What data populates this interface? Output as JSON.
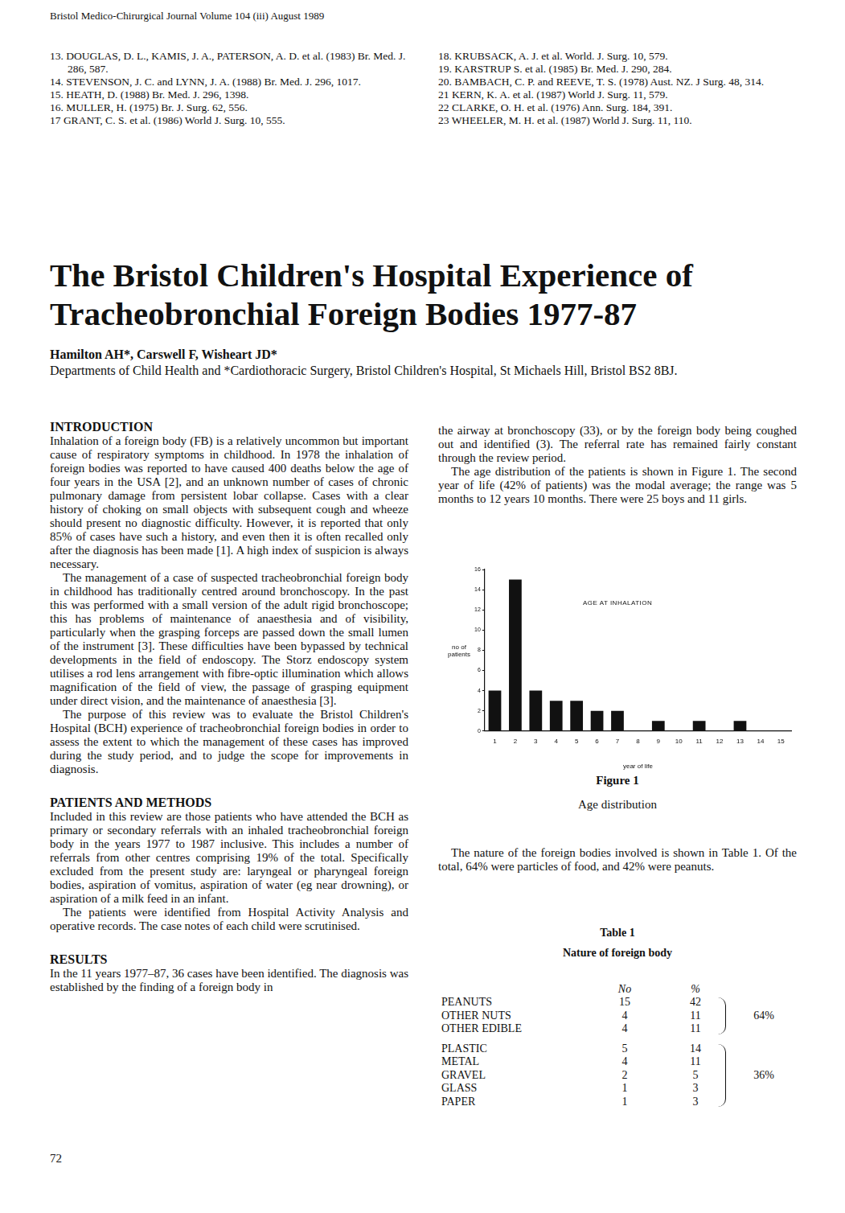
{
  "header": "Bristol Medico-Chirurgical Journal Volume 104 (iii) August 1989",
  "references": {
    "left": [
      "13. DOUGLAS, D. L., KAMIS, J. A., PATERSON, A. D. et al. (1983) Br. Med. J. 286, 587.",
      "14. STEVENSON, J. C. and LYNN, J. A. (1988) Br. Med. J. 296, 1017.",
      "15. HEATH, D. (1988) Br. Med. J. 296, 1398.",
      "16. MULLER, H. (1975) Br. J. Surg. 62, 556.",
      "17 GRANT, C. S. et al. (1986) World J. Surg. 10, 555."
    ],
    "right": [
      "18. KRUBSACK, A. J. et al. World. J. Surg. 10, 579.",
      "19. KARSTRUP S. et al. (1985) Br. Med. J. 290, 284.",
      "20. BAMBACH, C. P. and REEVE, T. S. (1978) Aust. NZ. J Surg. 48, 314.",
      "21 KERN, K. A. et al. (1987) World J. Surg. 11, 579.",
      "22 CLARKE, O. H. et al. (1976) Ann. Surg. 184, 391.",
      "23 WHEELER, M. H. et al. (1987) World J. Surg. 11, 110."
    ]
  },
  "title": "The Bristol Children's Hospital Experience of Tracheobronchial Foreign Bodies 1977-87",
  "authors": "Hamilton AH*, Carswell F, Wisheart JD*",
  "affiliation": "Departments of Child Health and *Cardiothoracic Surgery, Bristol Children's Hospital, St Michaels Hill, Bristol BS2 8BJ.",
  "left_column": [
    {
      "heading": "INTRODUCTION",
      "paragraphs": [
        "Inhalation of a foreign body (FB) is a relatively uncommon but important cause of respiratory symptoms in childhood. In 1978 the inhalation of foreign bodies was reported to have caused 400 deaths below the age of four years in the USA [2], and an unknown number of cases of chronic pulmonary damage from persistent lobar collapse. Cases with a clear history of choking on small objects with subsequent cough and wheeze should present no diagnostic difficulty. However, it is reported that only 85% of cases have such a history, and even then it is often recalled only after the diagnosis has been made [1]. A high index of suspicion is always necessary.",
        "The management of a case of suspected tracheobronchial foreign body in childhood has traditionally centred around bronchoscopy. In the past this was performed with a small version of the adult rigid bronchoscope; this has problems of maintenance of anaesthesia and of visibility, particularly when the grasping forceps are passed down the small lumen of the instrument [3]. These difficulties have been bypassed by technical developments in the field of endoscopy. The Storz endoscopy system utilises a rod lens arrangement with fibre-optic illumination which allows magnification of the field of view, the passage of grasping equipment under direct vision, and the maintenance of anaesthesia [3].",
        "The purpose of this review was to evaluate the Bristol Children's Hospital (BCH) experience of tracheobronchial foreign bodies in order to assess the extent to which the management of these cases has improved during the study period, and to judge the scope for improvements in diagnosis."
      ]
    },
    {
      "heading": "PATIENTS AND METHODS",
      "paragraphs": [
        "Included in this review are those patients who have attended the BCH as primary or secondary referrals with an inhaled tracheobronchial foreign body in the years 1977 to 1987 inclusive. This includes a number of referrals from other centres comprising 19% of the total. Specifically excluded from the present study are: laryngeal or pharyngeal foreign bodies, aspiration of vomitus, aspiration of water (eg near drowning), or aspiration of a milk feed in an infant.",
        "The patients were identified from Hospital Activity Analysis and operative records. The case notes of each child were scrutinised."
      ]
    },
    {
      "heading": "RESULTS",
      "paragraphs": [
        "In the 11 years 1977–87, 36 cases have been identified. The diagnosis was established by the finding of a foreign body in"
      ]
    }
  ],
  "right_column_before_figure": [
    "the airway at bronchoscopy (33), or by the foreign body being coughed out and identified (3). The referral rate has remained fairly constant through the review period.",
    "The age distribution of the patients is shown in Figure 1. The second year of life (42% of patients) was the modal average; the range was 5 months to 12 years 10 months. There were 25 boys and 11 girls."
  ],
  "chart_data": {
    "type": "bar",
    "title": "AGE AT INHALATION",
    "x_label": "year of life",
    "y_label": "no of patients",
    "categories": [
      "1",
      "2",
      "3",
      "4",
      "5",
      "6",
      "7",
      "8",
      "9",
      "10",
      "11",
      "12",
      "13",
      "14",
      "15"
    ],
    "values": [
      4,
      15,
      4,
      3,
      3,
      2,
      2,
      0,
      1,
      0,
      1,
      0,
      1,
      0,
      0
    ],
    "color": "#111111",
    "ylim": [
      0,
      16
    ],
    "yticks": [
      0,
      2,
      4,
      6,
      8,
      10,
      12,
      14,
      16
    ],
    "grid": false
  },
  "figure": {
    "label": "Figure 1",
    "caption": "Age distribution"
  },
  "right_column_after_figure": [
    "The nature of the foreign bodies involved is shown in Table 1. Of the total, 64% were particles of food, and 42% were peanuts."
  ],
  "table": {
    "label": "Table 1",
    "title": "Nature of foreign body",
    "columns": [
      "No",
      "%"
    ],
    "groups": [
      {
        "rows": [
          [
            "PEANUTS",
            15,
            42
          ],
          [
            "OTHER NUTS",
            4,
            11
          ],
          [
            "OTHER EDIBLE",
            4,
            11
          ]
        ],
        "total": "64%"
      },
      {
        "rows": [
          [
            "PLASTIC",
            5,
            14
          ],
          [
            "METAL",
            4,
            11
          ],
          [
            "GRAVEL",
            2,
            5
          ],
          [
            "GLASS",
            1,
            3
          ],
          [
            "PAPER",
            1,
            3
          ]
        ],
        "total": "36%"
      }
    ]
  },
  "page_number": "72"
}
